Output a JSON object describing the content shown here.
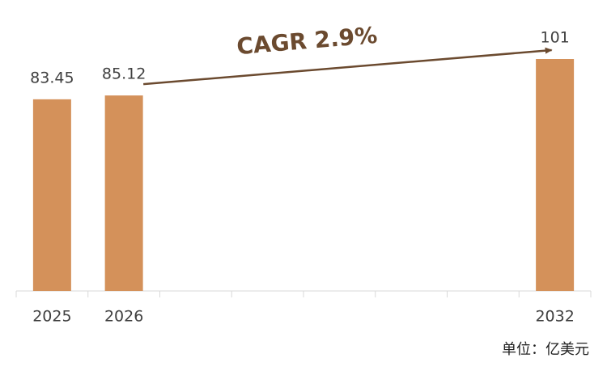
{
  "chart_data": {
    "type": "bar",
    "categories": [
      "2025",
      "2026",
      null,
      null,
      null,
      null,
      null,
      "2032"
    ],
    "values": [
      83.45,
      85.12,
      null,
      null,
      null,
      null,
      null,
      101
    ],
    "color": "#d4915a",
    "annotation": "CAGR 2.9%",
    "unit_note": "单位：亿美元"
  }
}
